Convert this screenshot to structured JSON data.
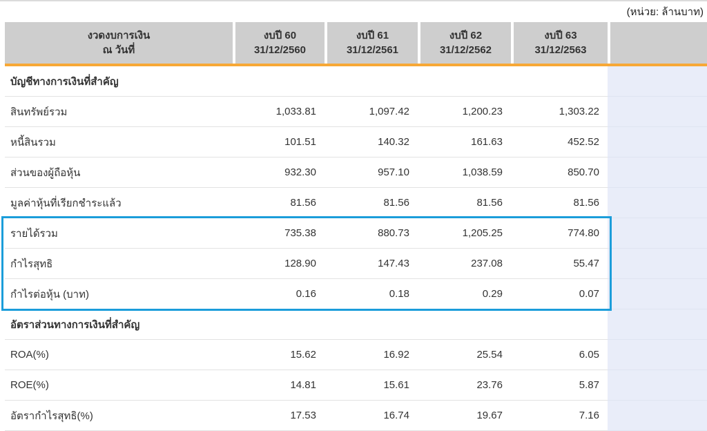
{
  "unit_label": "(หน่วย: ล้านบาท)",
  "colors": {
    "header-gray": "#CECECE",
    "accent-orange": "#F7A836",
    "highlight-blue": "#1B9DDA",
    "band-lavender": "#E9EDF9",
    "row-line": "#E2E2E2",
    "top-rule": "#DBDBDB",
    "text": "#333333"
  },
  "table": {
    "header": {
      "period_title_line1": "งวดงบการเงิน",
      "period_title_line2": "ณ วันที่",
      "columns": [
        {
          "year": "งบปี 60",
          "date": "31/12/2560"
        },
        {
          "year": "งบปี 61",
          "date": "31/12/2561"
        },
        {
          "year": "งบปี 62",
          "date": "31/12/2562"
        },
        {
          "year": "งบปี 63",
          "date": "31/12/2563"
        }
      ]
    },
    "rows": [
      {
        "type": "section",
        "label": "บัญชีทางการเงินที่สำคัญ"
      },
      {
        "type": "data",
        "label": "สินทรัพย์รวม",
        "values": [
          "1,033.81",
          "1,097.42",
          "1,200.23",
          "1,303.22"
        ]
      },
      {
        "type": "data",
        "label": "หนี้สินรวม",
        "values": [
          "101.51",
          "140.32",
          "161.63",
          "452.52"
        ]
      },
      {
        "type": "data",
        "label": "ส่วนของผู้ถือหุ้น",
        "values": [
          "932.30",
          "957.10",
          "1,038.59",
          "850.70"
        ]
      },
      {
        "type": "data",
        "label": "มูลค่าหุ้นที่เรียกชำระแล้ว",
        "values": [
          "81.56",
          "81.56",
          "81.56",
          "81.56"
        ]
      },
      {
        "type": "data",
        "label": "รายได้รวม",
        "values": [
          "735.38",
          "880.73",
          "1,205.25",
          "774.80"
        ],
        "highlighted": true
      },
      {
        "type": "data",
        "label": "กำไรสุทธิ",
        "values": [
          "128.90",
          "147.43",
          "237.08",
          "55.47"
        ],
        "highlighted": true
      },
      {
        "type": "data",
        "label": "กำไรต่อหุ้น (บาท)",
        "values": [
          "0.16",
          "0.18",
          "0.29",
          "0.07"
        ],
        "highlighted": true
      },
      {
        "type": "section",
        "label": "อัตราส่วนทางการเงินที่สำคัญ"
      },
      {
        "type": "data",
        "label": "ROA(%)",
        "values": [
          "15.62",
          "16.92",
          "25.54",
          "6.05"
        ]
      },
      {
        "type": "data",
        "label": "ROE(%)",
        "values": [
          "14.81",
          "15.61",
          "23.76",
          "5.87"
        ]
      },
      {
        "type": "data",
        "label": "อัตรากำไรสุทธิ(%)",
        "values": [
          "17.53",
          "16.74",
          "19.67",
          "7.16"
        ]
      }
    ],
    "highlight": {
      "rows": [
        "รายได้รวม",
        "กำไรสุทธิ",
        "กำไรต่อหุ้น (บาท)"
      ],
      "color": "#1B9DDA"
    }
  }
}
